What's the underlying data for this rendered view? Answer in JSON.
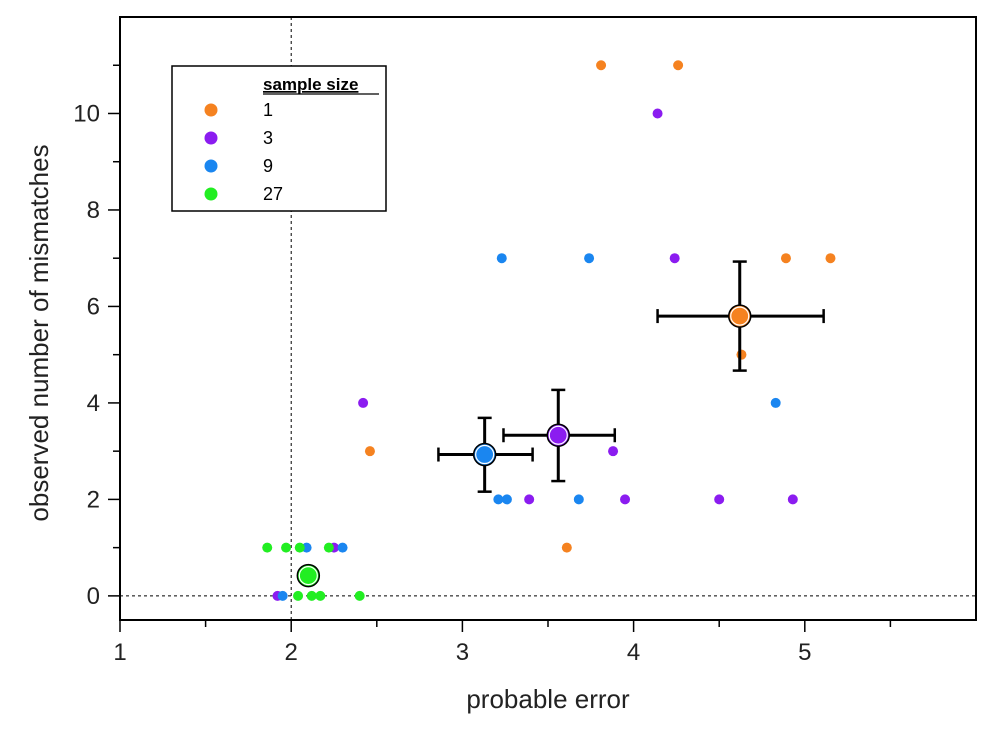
{
  "chart_data": {
    "type": "scatter",
    "xlabel": "probable error",
    "ylabel": "observed number of mismatches",
    "xlim": [
      1,
      6
    ],
    "ylim": [
      -0.5,
      12
    ],
    "x_ticks": [
      1,
      2,
      3,
      4,
      5
    ],
    "y_ticks": [
      0,
      2,
      4,
      6,
      8,
      10
    ],
    "reference_lines": {
      "vertical_x": 2,
      "horizontal_y": 0,
      "style": "dashed"
    },
    "legend": {
      "title": "sample size",
      "placement": "top-left"
    },
    "series": [
      {
        "name": "1",
        "color": "#f58220",
        "points": [
          {
            "x": 3.81,
            "y": 11
          },
          {
            "x": 4.26,
            "y": 11
          },
          {
            "x": 4.89,
            "y": 7
          },
          {
            "x": 5.15,
            "y": 7
          },
          {
            "x": 4.63,
            "y": 5
          },
          {
            "x": 2.46,
            "y": 3
          },
          {
            "x": 3.61,
            "y": 1
          }
        ],
        "mean": {
          "x": 4.62,
          "y": 5.8,
          "x_err": [
            4.14,
            5.11
          ],
          "y_err": [
            4.67,
            6.93
          ]
        }
      },
      {
        "name": "3",
        "color": "#8b1cf0",
        "points": [
          {
            "x": 4.14,
            "y": 10
          },
          {
            "x": 4.24,
            "y": 7
          },
          {
            "x": 2.42,
            "y": 4
          },
          {
            "x": 3.88,
            "y": 3
          },
          {
            "x": 3.39,
            "y": 2
          },
          {
            "x": 3.95,
            "y": 2
          },
          {
            "x": 4.5,
            "y": 2
          },
          {
            "x": 4.93,
            "y": 2
          },
          {
            "x": 2.25,
            "y": 1
          },
          {
            "x": 1.92,
            "y": 0
          }
        ],
        "mean": {
          "x": 3.56,
          "y": 3.33,
          "x_err": [
            3.24,
            3.89
          ],
          "y_err": [
            2.38,
            4.27
          ]
        }
      },
      {
        "name": "9",
        "color": "#1a86f0",
        "points": [
          {
            "x": 3.23,
            "y": 7
          },
          {
            "x": 3.74,
            "y": 7
          },
          {
            "x": 4.83,
            "y": 4
          },
          {
            "x": 3.21,
            "y": 2
          },
          {
            "x": 3.26,
            "y": 2
          },
          {
            "x": 3.68,
            "y": 2
          },
          {
            "x": 2.09,
            "y": 1
          },
          {
            "x": 2.3,
            "y": 1
          },
          {
            "x": 1.95,
            "y": 0
          }
        ],
        "mean": {
          "x": 3.13,
          "y": 2.93,
          "x_err": [
            2.86,
            3.41
          ],
          "y_err": [
            2.16,
            3.69
          ]
        }
      },
      {
        "name": "27",
        "color": "#22ee22",
        "points": [
          {
            "x": 1.86,
            "y": 1
          },
          {
            "x": 1.97,
            "y": 1
          },
          {
            "x": 2.05,
            "y": 1
          },
          {
            "x": 2.22,
            "y": 1
          },
          {
            "x": 2.04,
            "y": 0
          },
          {
            "x": 2.12,
            "y": 0
          },
          {
            "x": 2.17,
            "y": 0
          },
          {
            "x": 2.4,
            "y": 0
          }
        ],
        "mean": {
          "x": 2.1,
          "y": 0.42,
          "x_err": [
            2.08,
            2.12
          ],
          "y_err": [
            0.35,
            0.49
          ]
        }
      }
    ]
  }
}
